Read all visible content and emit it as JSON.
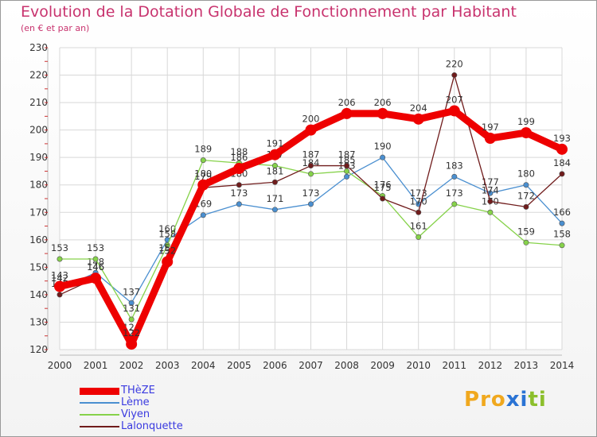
{
  "title": "Evolution de la Dotation Globale de Fonctionnement par Habitant",
  "subtitle": "(en € et par an)",
  "logo": {
    "text": "Proxiti",
    "letters": [
      "P",
      "r",
      "o",
      "x",
      "i",
      "t",
      "i"
    ],
    "colors": [
      "#f0a81e",
      "#f0a81e",
      "#f0a81e",
      "#2a73d4",
      "#2a73d4",
      "#8cbf2c",
      "#8cbf2c"
    ]
  },
  "chart_data": {
    "type": "line",
    "title": "Evolution de la Dotation Globale de Fonctionnement par Habitant",
    "ylabel": "(en € et par an)",
    "xlabel": "",
    "ylim": [
      120,
      230
    ],
    "yticks": [
      "120",
      "130",
      "140",
      "150",
      "160",
      "170",
      "180",
      "190",
      "200",
      "210",
      "220",
      "230"
    ],
    "categories": [
      "2000",
      "2001",
      "2002",
      "2003",
      "2004",
      "2005",
      "2006",
      "2007",
      "2008",
      "2009",
      "2010",
      "2011",
      "2012",
      "2013",
      "2014"
    ],
    "grid": true,
    "legend": "bottom-left",
    "series": [
      {
        "name": "Lème",
        "color": "#4a8fd0",
        "values": [
          142,
          148,
          137,
          160,
          169,
          173,
          171,
          173,
          183,
          190,
          173,
          183,
          177,
          180,
          166
        ]
      },
      {
        "name": "Viyen",
        "color": "#86d24a",
        "values": [
          153,
          153,
          131,
          158,
          189,
          188,
          187,
          184,
          185,
          176,
          161,
          173,
          170,
          159,
          158
        ]
      },
      {
        "name": "Lalonquette",
        "color": "#701c1c",
        "values": [
          140,
          146,
          124,
          153,
          179,
          180,
          181,
          187,
          187,
          175,
          170,
          220,
          174,
          172,
          184
        ]
      },
      {
        "name": "THèZE",
        "color": "#ee0000",
        "values": [
          143,
          146,
          122,
          152,
          180,
          186,
          191,
          200,
          206,
          206,
          204,
          207,
          197,
          199,
          193
        ]
      }
    ]
  }
}
